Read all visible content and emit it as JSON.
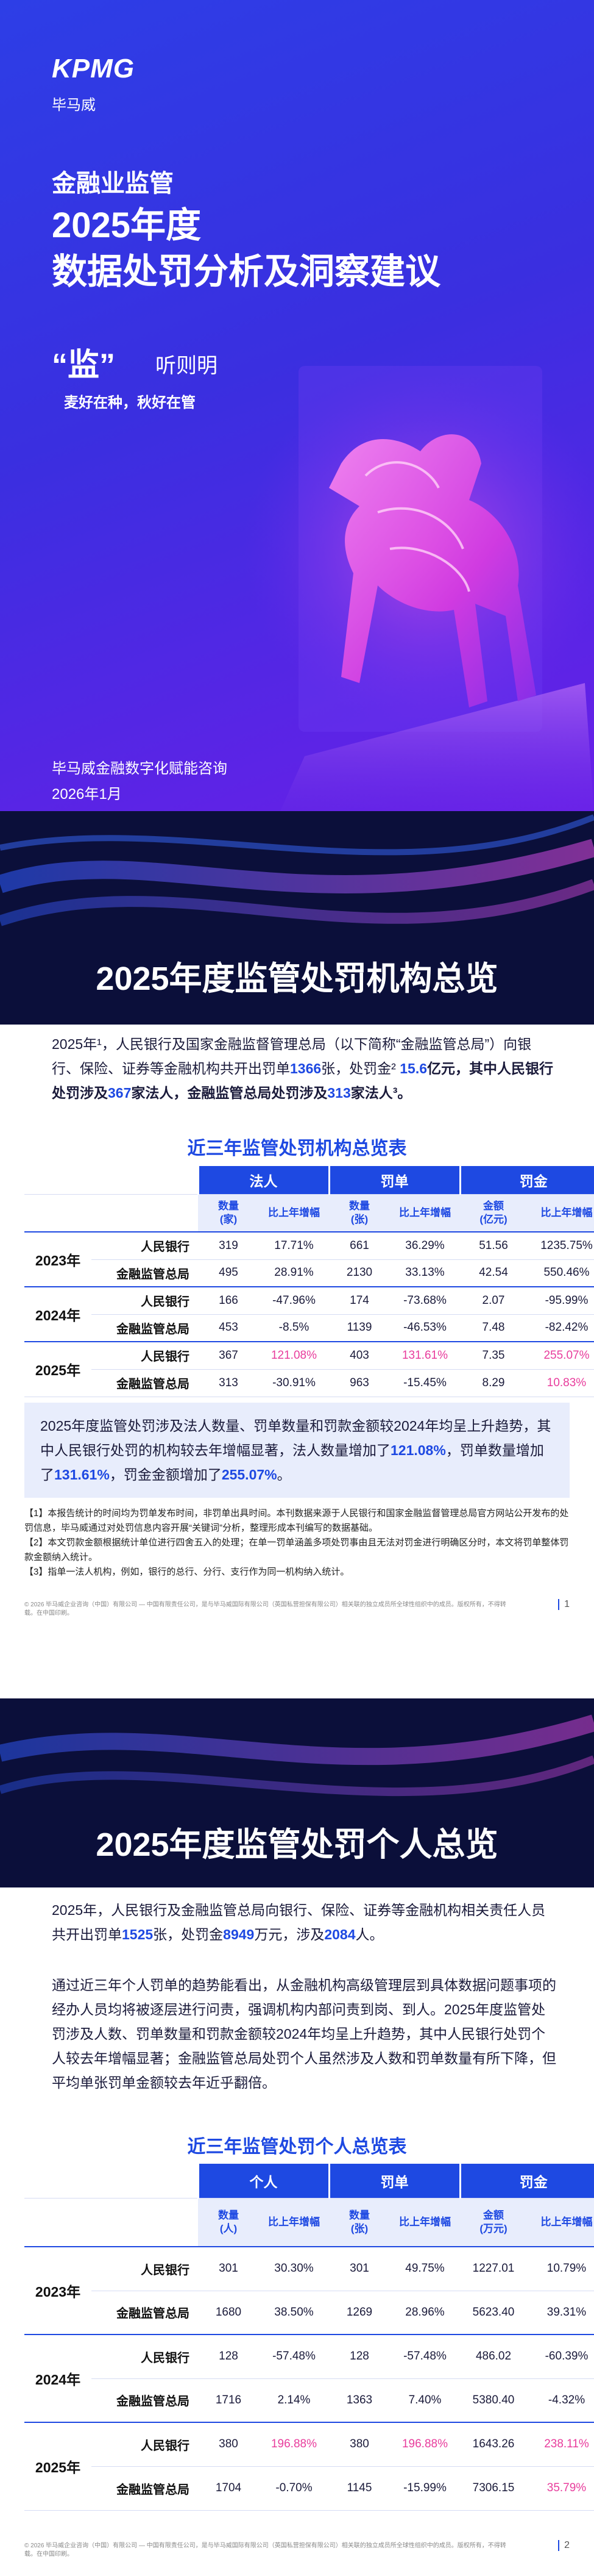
{
  "cover": {
    "brand": "KPMG",
    "brand_cn": "毕马威",
    "title_line1": "金融业监管",
    "title_line2": "2025年度",
    "title_line3": "数据处罚分析及洞察建议",
    "motto_char": "“监”",
    "motto_rest": "听则明",
    "slogan": "麦好在种，秋好在管",
    "org": "毕马威金融数字化赋能咨询",
    "date": "2026年1月"
  },
  "section1": {
    "title": "2025年度监管处罚机构总览",
    "intro": [
      "2025年¹，人民银行及国家金融监督管理总局（以下简称“金融监管总局”）向银行、保险、证券等金融机构共开出罚单",
      "1366",
      "张，处罚金² ",
      "15.6",
      "亿元，其中人民银行处罚涉及",
      "367",
      "家法人，金融监管总局处罚涉及",
      "313",
      "家法人³。"
    ],
    "table": {
      "title": "近三年监管处罚机构总览表",
      "groups": [
        "法人",
        "罚单",
        "罚金"
      ],
      "subheaders": [
        "数量\n(家)",
        "比上年增幅",
        "数量\n(张)",
        "比上年增幅",
        "金额\n(亿元)",
        "比上年增幅"
      ],
      "years": [
        {
          "year": "2023年",
          "rows": [
            [
              "人民银行",
              "319",
              "17.71%",
              "661",
              "36.29%",
              "51.56",
              "1235.75%"
            ],
            [
              "金融监管总局",
              "495",
              "28.91%",
              "2130",
              "33.13%",
              "42.54",
              "550.46%"
            ]
          ]
        },
        {
          "year": "2024年",
          "rows": [
            [
              "人民银行",
              "166",
              "-47.96%",
              "174",
              "-73.68%",
              "2.07",
              "-95.99%"
            ],
            [
              "金融监管总局",
              "453",
              "-8.5%",
              "1139",
              "-46.53%",
              "7.48",
              "-82.42%"
            ]
          ]
        },
        {
          "year": "2025年",
          "rows": [
            [
              "人民银行",
              "367",
              "121.08%",
              "403",
              "131.61%",
              "7.35",
              "255.07%"
            ],
            [
              "金融监管总局",
              "313",
              "-30.91%",
              "963",
              "-15.45%",
              "8.29",
              "10.83%"
            ]
          ]
        }
      ]
    },
    "summary": [
      "2025年度监管处罚涉及法人数量、罚单数量和罚款金额较2024年均呈上升趋势，其中人民银行处罚的机构较去年增幅显著，法人数量增加了",
      "121.08%",
      "，罚单数量增加了",
      "131.61%",
      "，罚金金额增加了",
      "255.07%",
      "。"
    ],
    "notes": [
      "【1】本报告统计的时间均为罚单发布时间，非罚单出具时间。本刊数据来源于人民银行和国家金融监督管理总局官方网站公开发布的处罚信息，毕马威通过对处罚信息内容开展“关键词”分析，整理形成本刊编写的数据基础。",
      "【2】本文罚款金额根据统计单位进行四舍五入的处理；在单一罚单涵盖多项处罚事由且无法对罚金进行明确区分时，本文将罚单整体罚款金额纳入统计。",
      "【3】指单一法人机构，例如，银行的总行、分行、支行作为同一机构纳入统计。"
    ],
    "footer": "© 2026 毕马威企业咨询（中国）有限公司 — 中国有限责任公司，是与毕马威国际有限公司（英国私营担保有限公司）相关联的独立成员所全球性组织中的成员。版权所有，不得转载。在中国印刷。",
    "page": "1"
  },
  "section2": {
    "title": "2025年度监管处罚个人总览",
    "intro": [
      "2025年，人民银行及金融监管总局向银行、保险、证券等金融机构相关责任人员共开出罚单",
      "1525",
      "张，处罚金",
      "8949",
      "万元，涉及",
      "2084",
      "人。"
    ],
    "analysis": "通过近三年个人罚单的趋势能看出，从金融机构高级管理层到具体数据问题事项的经办人员均将被逐层进行问责，强调机构内部问责到岗、到人。2025年度监管处罚涉及人数、罚单数量和罚款金额较2024年均呈上升趋势，其中人民银行处罚个人较去年增幅显著；金融监管总局处罚个人虽然涉及人数和罚单数量有所下降，但平均单张罚单金额较去年近乎翻倍。",
    "table": {
      "title": "近三年监管处罚个人总览表",
      "groups": [
        "个人",
        "罚单",
        "罚金"
      ],
      "subheaders": [
        "数量\n(人)",
        "比上年增幅",
        "数量\n(张)",
        "比上年增幅",
        "金额\n(万元)",
        "比上年增幅"
      ],
      "years": [
        {
          "year": "2023年",
          "rows": [
            [
              "人民银行",
              "301",
              "30.30%",
              "301",
              "49.75%",
              "1227.01",
              "10.79%"
            ],
            [
              "金融监管总局",
              "1680",
              "38.50%",
              "1269",
              "28.96%",
              "5623.40",
              "39.31%"
            ]
          ]
        },
        {
          "year": "2024年",
          "rows": [
            [
              "人民银行",
              "128",
              "-57.48%",
              "128",
              "-57.48%",
              "486.02",
              "-60.39%"
            ],
            [
              "金融监管总局",
              "1716",
              "2.14%",
              "1363",
              "7.40%",
              "5380.40",
              "-4.32%"
            ]
          ]
        },
        {
          "year": "2025年",
          "rows": [
            [
              "人民银行",
              "380",
              "196.88%",
              "380",
              "196.88%",
              "1643.26",
              "238.11%"
            ],
            [
              "金融监管总局",
              "1704",
              "-0.70%",
              "1145",
              "-15.99%",
              "7306.15",
              "35.79%"
            ]
          ]
        }
      ]
    },
    "footer": "© 2026 毕马威企业咨询（中国）有限公司 — 中国有限责任公司，是与毕马威国际有限公司（英国私营担保有限公司）相关联的独立成员所全球性组织中的成员。版权所有，不得转载。在中国印刷。",
    "page": "2"
  }
}
